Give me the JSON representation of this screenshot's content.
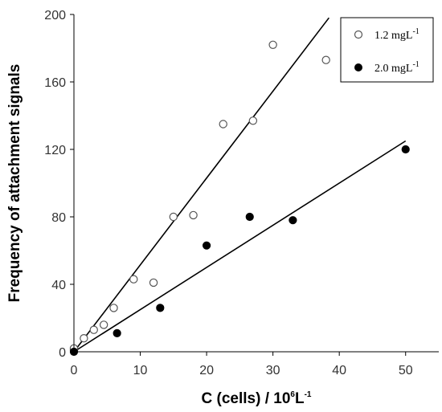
{
  "chart_data": {
    "type": "scatter",
    "xlabel_main": "C (cells) / 10",
    "xlabel_sup1": "6",
    "xlabel_unit": "L",
    "xlabel_sup2": "-1",
    "ylabel": "Frequency of attachment signals",
    "xlim": [
      0,
      55
    ],
    "ylim": [
      0,
      200
    ],
    "xticks": [
      0,
      10,
      20,
      30,
      40,
      50
    ],
    "yticks": [
      0,
      40,
      80,
      120,
      160,
      200
    ],
    "grid": false,
    "legend_position": "top-right",
    "series": [
      {
        "name": "1.2 mgL",
        "name_sup": "-1",
        "marker": "open-circle",
        "color": "#555555",
        "points": [
          [
            0,
            1
          ],
          [
            0,
            2
          ],
          [
            1.5,
            8
          ],
          [
            3,
            13
          ],
          [
            4.5,
            16
          ],
          [
            6,
            26
          ],
          [
            9,
            43
          ],
          [
            12,
            41
          ],
          [
            15,
            80
          ],
          [
            18,
            81
          ],
          [
            22.5,
            135
          ],
          [
            27,
            137
          ],
          [
            30,
            182
          ],
          [
            38,
            173
          ]
        ],
        "fit": {
          "slope": 5.15,
          "intercept": 0
        }
      },
      {
        "name": "2.0 mgL",
        "name_sup": "-1",
        "marker": "filled-circle",
        "color": "#000000",
        "points": [
          [
            0,
            0
          ],
          [
            6.5,
            11
          ],
          [
            13,
            26
          ],
          [
            20,
            63
          ],
          [
            26.5,
            80
          ],
          [
            33,
            78
          ],
          [
            50,
            120
          ]
        ],
        "fit": {
          "slope": 2.5,
          "intercept": 0
        }
      }
    ]
  }
}
